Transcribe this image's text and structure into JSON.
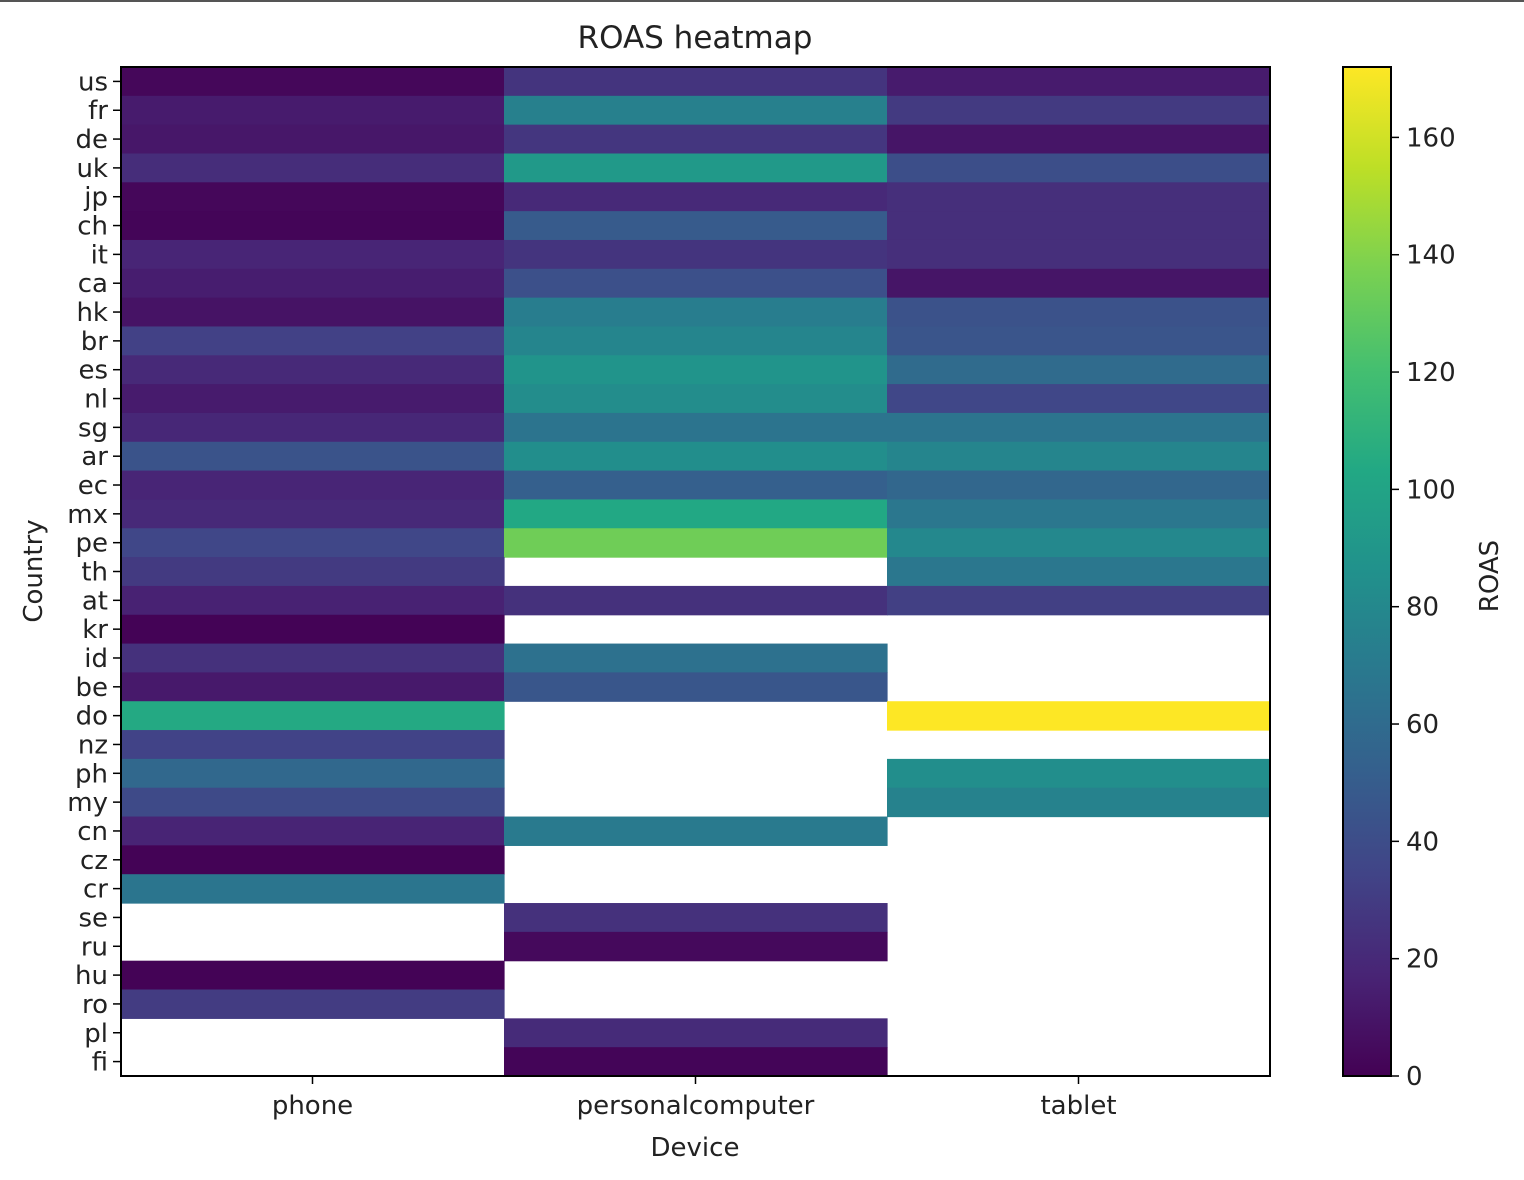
{
  "chart_data": {
    "type": "heatmap",
    "title": "ROAS heatmap",
    "xlabel": "Device",
    "ylabel": "Country",
    "colorbar_label": "ROAS",
    "colormap": "viridis",
    "vmin": 0,
    "vmax": 172,
    "colorbar_ticks": [
      0,
      20,
      40,
      60,
      80,
      100,
      120,
      140,
      160
    ],
    "x_categories": [
      "phone",
      "personalcomputer",
      "tablet"
    ],
    "y_categories": [
      "us",
      "fr",
      "de",
      "uk",
      "jp",
      "ch",
      "it",
      "ca",
      "hk",
      "br",
      "es",
      "nl",
      "sg",
      "ar",
      "ec",
      "mx",
      "pe",
      "th",
      "at",
      "kr",
      "id",
      "be",
      "do",
      "nz",
      "ph",
      "my",
      "cn",
      "cz",
      "cr",
      "se",
      "ru",
      "hu",
      "ro",
      "pl",
      "fi"
    ],
    "values": [
      [
        3,
        26,
        13
      ],
      [
        13,
        74,
        29
      ],
      [
        11,
        27,
        10
      ],
      [
        22,
        92,
        41
      ],
      [
        3,
        20,
        23
      ],
      [
        2,
        49,
        23
      ],
      [
        18,
        26,
        23
      ],
      [
        14,
        42,
        10
      ],
      [
        9,
        72,
        43
      ],
      [
        33,
        78,
        45
      ],
      [
        20,
        88,
        60
      ],
      [
        13,
        83,
        36
      ],
      [
        19,
        66,
        66
      ],
      [
        44,
        84,
        78
      ],
      [
        18,
        52,
        57
      ],
      [
        20,
        103,
        68
      ],
      [
        36,
        134,
        80
      ],
      [
        29,
        null,
        68
      ],
      [
        16,
        24,
        32
      ],
      [
        1,
        null,
        null
      ],
      [
        24,
        64,
        null
      ],
      [
        12,
        46,
        null
      ],
      [
        104,
        null,
        172
      ],
      [
        34,
        null,
        null
      ],
      [
        58,
        null,
        84
      ],
      [
        38,
        null,
        76
      ],
      [
        17,
        70,
        null
      ],
      [
        1,
        null,
        null
      ],
      [
        67,
        null,
        null
      ],
      [
        null,
        24,
        null
      ],
      [
        null,
        4,
        null
      ],
      [
        1,
        null,
        null
      ],
      [
        30,
        null,
        null
      ],
      [
        null,
        21,
        null
      ],
      [
        null,
        2,
        null
      ]
    ],
    "grid": false,
    "legend": "colorbar-right"
  }
}
